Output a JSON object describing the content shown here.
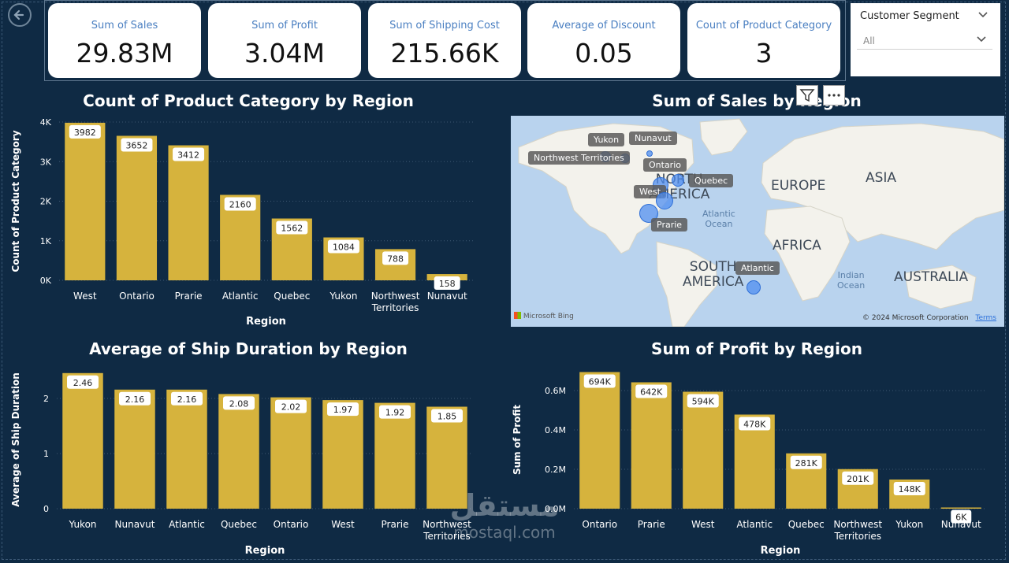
{
  "nav": {
    "back_icon": "back-arrow-icon"
  },
  "kpis": [
    {
      "label": "Sum of Sales",
      "value": "29.83M"
    },
    {
      "label": "Sum of Profit",
      "value": "3.04M"
    },
    {
      "label": "Sum of Shipping Cost",
      "value": "215.66K"
    },
    {
      "label": "Average of Discount",
      "value": "0.05"
    },
    {
      "label": "Count of Product Category",
      "value": "3"
    }
  ],
  "slicer": {
    "title": "Customer Segment",
    "selected": "All"
  },
  "colors": {
    "background": "#0f2a44",
    "bar": "#d6b33d",
    "map_water": "#b9d3ee",
    "map_land": "#f3f2ec",
    "bubble": "#4f8ef0"
  },
  "chart_data": [
    {
      "type": "bar",
      "title": "Count of Product Category by Region",
      "xlabel": "Region",
      "ylabel": "Count of Product Category",
      "categories": [
        "West",
        "Ontario",
        "Prarie",
        "Atlantic",
        "Quebec",
        "Yukon",
        "Northwest Territories",
        "Nunavut"
      ],
      "values": [
        3982,
        3652,
        3412,
        2160,
        1562,
        1084,
        788,
        158
      ],
      "data_labels": [
        "3982",
        "3652",
        "3412",
        "2160",
        "1562",
        "1084",
        "788",
        "158"
      ],
      "ylim": [
        0,
        4000
      ],
      "yticks": [
        0,
        1000,
        2000,
        3000,
        4000
      ],
      "ytick_labels": [
        "0K",
        "1K",
        "2K",
        "3K",
        "4K"
      ],
      "grid": true
    },
    {
      "type": "bar",
      "title": "Average of Ship Duration by Region",
      "xlabel": "Region",
      "ylabel": "Average of Ship Duration",
      "categories": [
        "Yukon",
        "Nunavut",
        "Atlantic",
        "Quebec",
        "Ontario",
        "West",
        "Prarie",
        "Northwest Territories"
      ],
      "values": [
        2.46,
        2.16,
        2.16,
        2.08,
        2.02,
        1.97,
        1.92,
        1.85
      ],
      "data_labels": [
        "2.46",
        "2.16",
        "2.16",
        "2.08",
        "2.02",
        "1.97",
        "1.92",
        "1.85"
      ],
      "ylim": [
        0,
        2.5
      ],
      "yticks": [
        0,
        1,
        2
      ],
      "ytick_labels": [
        "0",
        "1",
        "2"
      ],
      "grid": true
    },
    {
      "type": "bar",
      "title": "Sum of Profit by Region",
      "xlabel": "Region",
      "ylabel": "Sum of Profit",
      "categories": [
        "Ontario",
        "Prarie",
        "West",
        "Atlantic",
        "Quebec",
        "Northwest Territories",
        "Yukon",
        "Nunavut"
      ],
      "values": [
        694000,
        642000,
        594000,
        478000,
        281000,
        201000,
        148000,
        6000
      ],
      "data_labels": [
        "694K",
        "642K",
        "594K",
        "478K",
        "281K",
        "201K",
        "148K",
        "6K"
      ],
      "ylim": [
        0,
        700000
      ],
      "yticks": [
        0,
        200000,
        400000,
        600000
      ],
      "ytick_labels": [
        "0.0M",
        "0.2M",
        "0.4M",
        "0.6M"
      ],
      "grid": true
    }
  ],
  "map": {
    "title": "Sum of Sales by Region",
    "continents": [
      "NORTH AMERICA",
      "EUROPE",
      "ASIA",
      "AFRICA",
      "SOUTH AMERICA",
      "AUSTRALIA"
    ],
    "oceans": [
      "Atlantic Ocean",
      "Indian Ocean"
    ],
    "bubbles": [
      {
        "label": "Yukon"
      },
      {
        "label": "Nunavut"
      },
      {
        "label": "Northwest Territories"
      },
      {
        "label": "Ontario"
      },
      {
        "label": "Quebec"
      },
      {
        "label": "West"
      },
      {
        "label": "Prarie"
      },
      {
        "label": "Atlantic"
      }
    ],
    "attribution": "Microsoft Bing",
    "copyright": "© 2024 Microsoft Corporation",
    "terms": "Terms",
    "tools": [
      "filter-icon",
      "more-options-icon"
    ]
  },
  "watermark": {
    "arabic": "مستقل",
    "latin": "mostaql.com"
  }
}
